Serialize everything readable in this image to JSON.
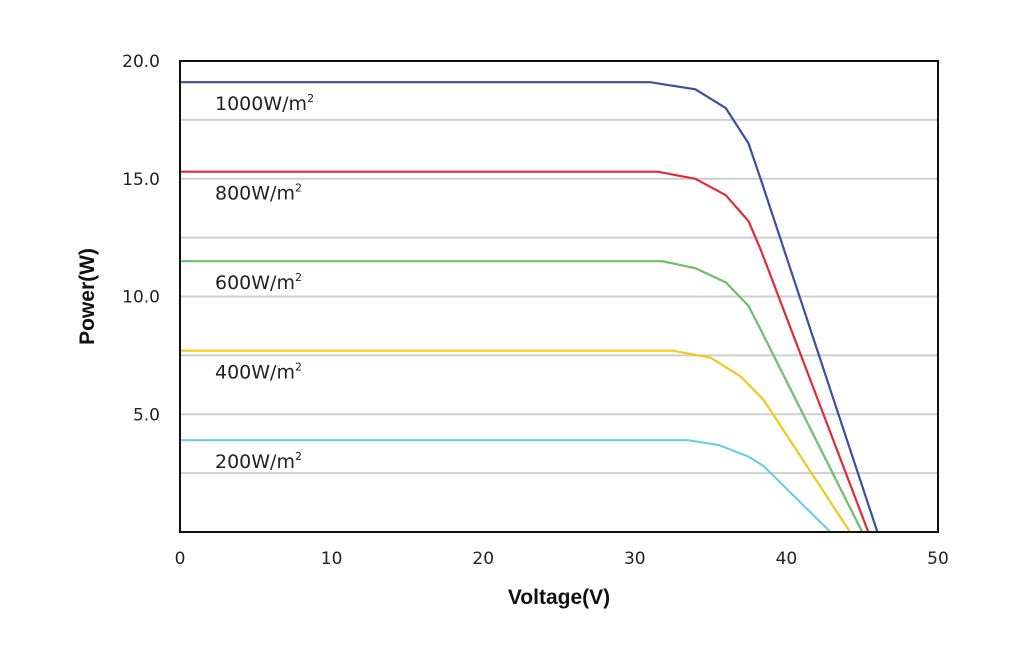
{
  "chart_data": {
    "type": "line",
    "title": "",
    "xlabel": "Voltage(V)",
    "ylabel": "Power(W)",
    "xlim": [
      0,
      50
    ],
    "ylim": [
      0,
      20
    ],
    "x_ticks": [
      "0",
      "10",
      "20",
      "30",
      "40",
      "50"
    ],
    "y_ticks": [
      "5.0",
      "10.0",
      "15.0",
      "20.0"
    ],
    "grid": "horizontal",
    "legend": "inline labels at left",
    "series": [
      {
        "name": "1000W/m",
        "sup": "2",
        "color": "#3b4fa0",
        "points": [
          [
            0,
            19.1
          ],
          [
            31,
            19.1
          ],
          [
            34,
            18.8
          ],
          [
            36,
            18.0
          ],
          [
            37.5,
            16.5
          ],
          [
            38.3,
            15.0
          ],
          [
            46,
            0
          ]
        ]
      },
      {
        "name": "800W/m",
        "sup": "2",
        "color": "#e02b35",
        "points": [
          [
            0,
            15.3
          ],
          [
            31.5,
            15.3
          ],
          [
            34,
            15.0
          ],
          [
            36,
            14.3
          ],
          [
            37.5,
            13.2
          ],
          [
            38.3,
            12.0
          ],
          [
            45.4,
            0
          ]
        ]
      },
      {
        "name": "600W/m",
        "sup": "2",
        "color": "#6bbf6a",
        "points": [
          [
            0,
            11.5
          ],
          [
            31.8,
            11.5
          ],
          [
            34,
            11.2
          ],
          [
            36,
            10.6
          ],
          [
            37.5,
            9.6
          ],
          [
            38.3,
            8.6
          ],
          [
            45,
            0
          ]
        ]
      },
      {
        "name": "400W/m",
        "sup": "2",
        "color": "#f2c81a",
        "points": [
          [
            0,
            7.7
          ],
          [
            32.5,
            7.7
          ],
          [
            35,
            7.4
          ],
          [
            37,
            6.6
          ],
          [
            38.5,
            5.6
          ],
          [
            44.2,
            0
          ]
        ]
      },
      {
        "name": "200W/m",
        "sup": "2",
        "color": "#6ccfe0",
        "points": [
          [
            0,
            3.9
          ],
          [
            33.5,
            3.9
          ],
          [
            35.5,
            3.7
          ],
          [
            37.5,
            3.2
          ],
          [
            38.5,
            2.8
          ],
          [
            42.9,
            0
          ]
        ]
      }
    ]
  }
}
